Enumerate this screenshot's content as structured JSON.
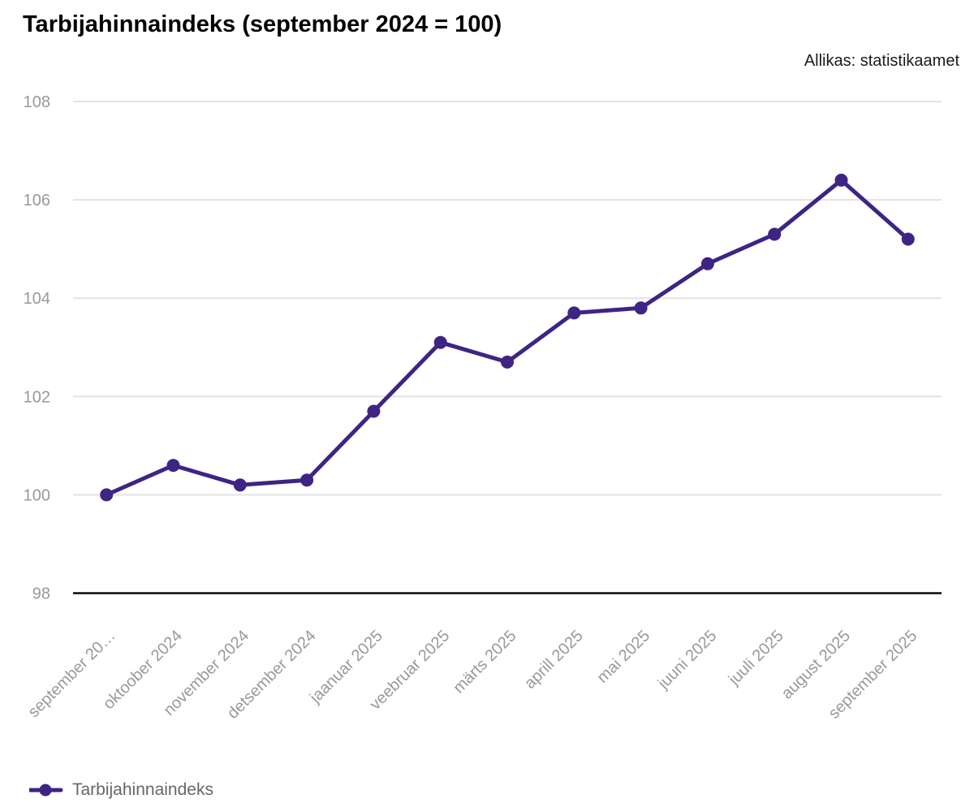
{
  "header": {
    "title": "Tarbijahinnaindeks (september 2024 = 100)",
    "source_note": "Allikas: statistikaamet"
  },
  "legend": {
    "items": [
      {
        "label": "Tarbijahinnaindeks",
        "marker": "line-dot-icon"
      }
    ]
  },
  "colors": {
    "series_line": "#3e2484",
    "gridline": "#e3e3e3",
    "axis_line": "#0a0a0a",
    "tick_label": "#999999",
    "legend_text": "#666666",
    "title_text": "#000000",
    "background": "#ffffff"
  },
  "chart_data": {
    "type": "line",
    "title": "Tarbijahinnaindeks (september 2024 = 100)",
    "source": "Allikas: statistikaamet",
    "categories": [
      "september 2024",
      "oktoober 2024",
      "november 2024",
      "detsember 2024",
      "jaanuar 2025",
      "veebruar 2025",
      "märts 2025",
      "aprill 2025",
      "mai 2025",
      "juuni 2025",
      "juuli 2025",
      "august 2025",
      "september 2025"
    ],
    "x_tick_labels_displayed": [
      "september 20…",
      "oktoober 2024",
      "november 2024",
      "detsember 2024",
      "jaanuar 2025",
      "veebruar 2025",
      "märts 2025",
      "aprill 2025",
      "mai 2025",
      "juuni 2025",
      "juuli 2025",
      "august 2025",
      "september 2025"
    ],
    "series": [
      {
        "name": "Tarbijahinnaindeks",
        "color": "#3e2484",
        "values": [
          100.0,
          100.6,
          100.2,
          100.3,
          101.7,
          103.1,
          102.7,
          103.7,
          103.8,
          104.7,
          105.3,
          106.4,
          105.2
        ]
      }
    ],
    "ylim": [
      98,
      108
    ],
    "yticks": [
      98,
      100,
      102,
      104,
      106,
      108
    ],
    "grid": "horizontal-only",
    "x_label_rotation_deg": -45,
    "legend_position": "bottom-left"
  }
}
